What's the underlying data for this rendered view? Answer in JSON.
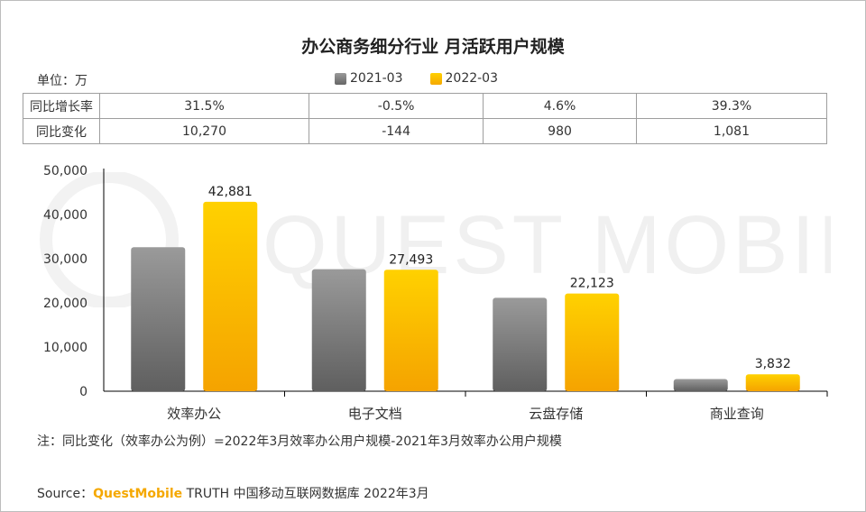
{
  "watermark": "QUEST MOBILE",
  "chart_data": {
    "type": "bar",
    "title": "办公商务细分行业 月活跃用户规模",
    "unit_label": "单位：万",
    "categories": [
      "效率办公",
      "电子文档",
      "云盘存储",
      "商业查询"
    ],
    "series": [
      {
        "name": "2021-03",
        "color": "#7f7f7f",
        "values": [
          32611,
          27637,
          21143,
          2751
        ],
        "labels": [
          "",
          "",
          "",
          ""
        ]
      },
      {
        "name": "2022-03",
        "color": "#ffc000",
        "values": [
          42881,
          27493,
          22123,
          3832
        ],
        "labels": [
          "42,881",
          "27,493",
          "22,123",
          "3,832"
        ]
      }
    ],
    "ylim": [
      0,
      50000
    ],
    "yticks": [
      0,
      10000,
      20000,
      30000,
      40000,
      50000
    ],
    "ytick_labels": [
      "0",
      "10,000",
      "20,000",
      "30,000",
      "40,000",
      "50,000"
    ],
    "xlabel": "",
    "ylabel": ""
  },
  "stats_table": {
    "rows": [
      {
        "label": "同比增长率",
        "values": [
          "31.5%",
          "-0.5%",
          "4.6%",
          "39.3%"
        ]
      },
      {
        "label": "同比变化",
        "values": [
          "10,270",
          "-144",
          "980",
          "1,081"
        ]
      }
    ]
  },
  "note": "注：同比变化（效率办公为例）=2022年3月效率办公用户规模-2021年3月效率办公用户规模",
  "source": {
    "prefix": "Source：",
    "brand": "QuestMobile",
    "suffix": " TRUTH 中国移动互联网数据库 2022年3月"
  }
}
